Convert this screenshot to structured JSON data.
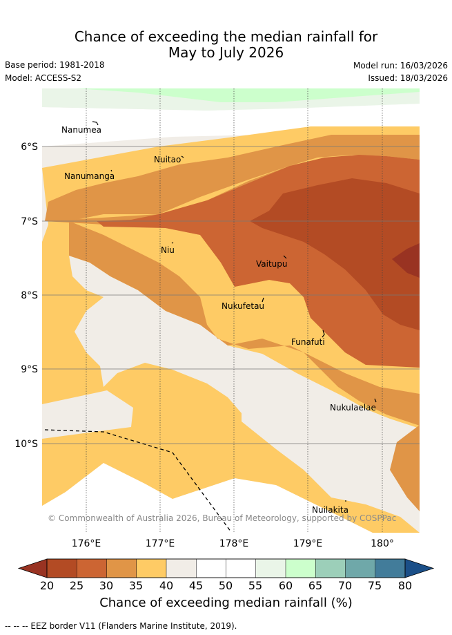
{
  "title_line1": "Chance of exceeding the median rainfall for",
  "title_line2": "May to July 2026",
  "base_period": "Base period: 1981-2018",
  "model": "Model: ACCESS-S2",
  "model_run": "Model run: 16/03/2026",
  "issued": "Issued: 18/03/2026",
  "lat_labels": [
    "6°S",
    "7°S",
    "8°S",
    "9°S",
    "10°S"
  ],
  "lon_labels": [
    "176°E",
    "177°E",
    "178°E",
    "179°E",
    "180°"
  ],
  "islands": [
    "Nanumea",
    "Nuitao",
    "Nanumanga",
    "Niu",
    "Vaitupu",
    "Nukufetau",
    "Funafuti",
    "Nukulaelae",
    "Nuilakita"
  ],
  "copyright": "© Commonwealth of Australia 2026, Bureau of Meteorology, supported by COSPPac",
  "colorbar": {
    "ticks": [
      "20",
      "25",
      "30",
      "35",
      "40",
      "45",
      "50",
      "55",
      "60",
      "65",
      "70",
      "75",
      "80"
    ],
    "colors": [
      "#b34b24",
      "#cc6533",
      "#e09547",
      "#fecb65",
      "#f1ede7",
      "#ffffff",
      "#ffffff",
      "#eaf5e8",
      "#ccffcc",
      "#9ccfb9",
      "#6fa8a9",
      "#427c9a"
    ],
    "under_color": "#993322",
    "over_color": "#1b4f88",
    "label": "Chance of exceeding median rainfall (%)"
  },
  "footnote": "-- -- -- EEZ border V11 (Flanders Marine Institute, 2019)."
}
